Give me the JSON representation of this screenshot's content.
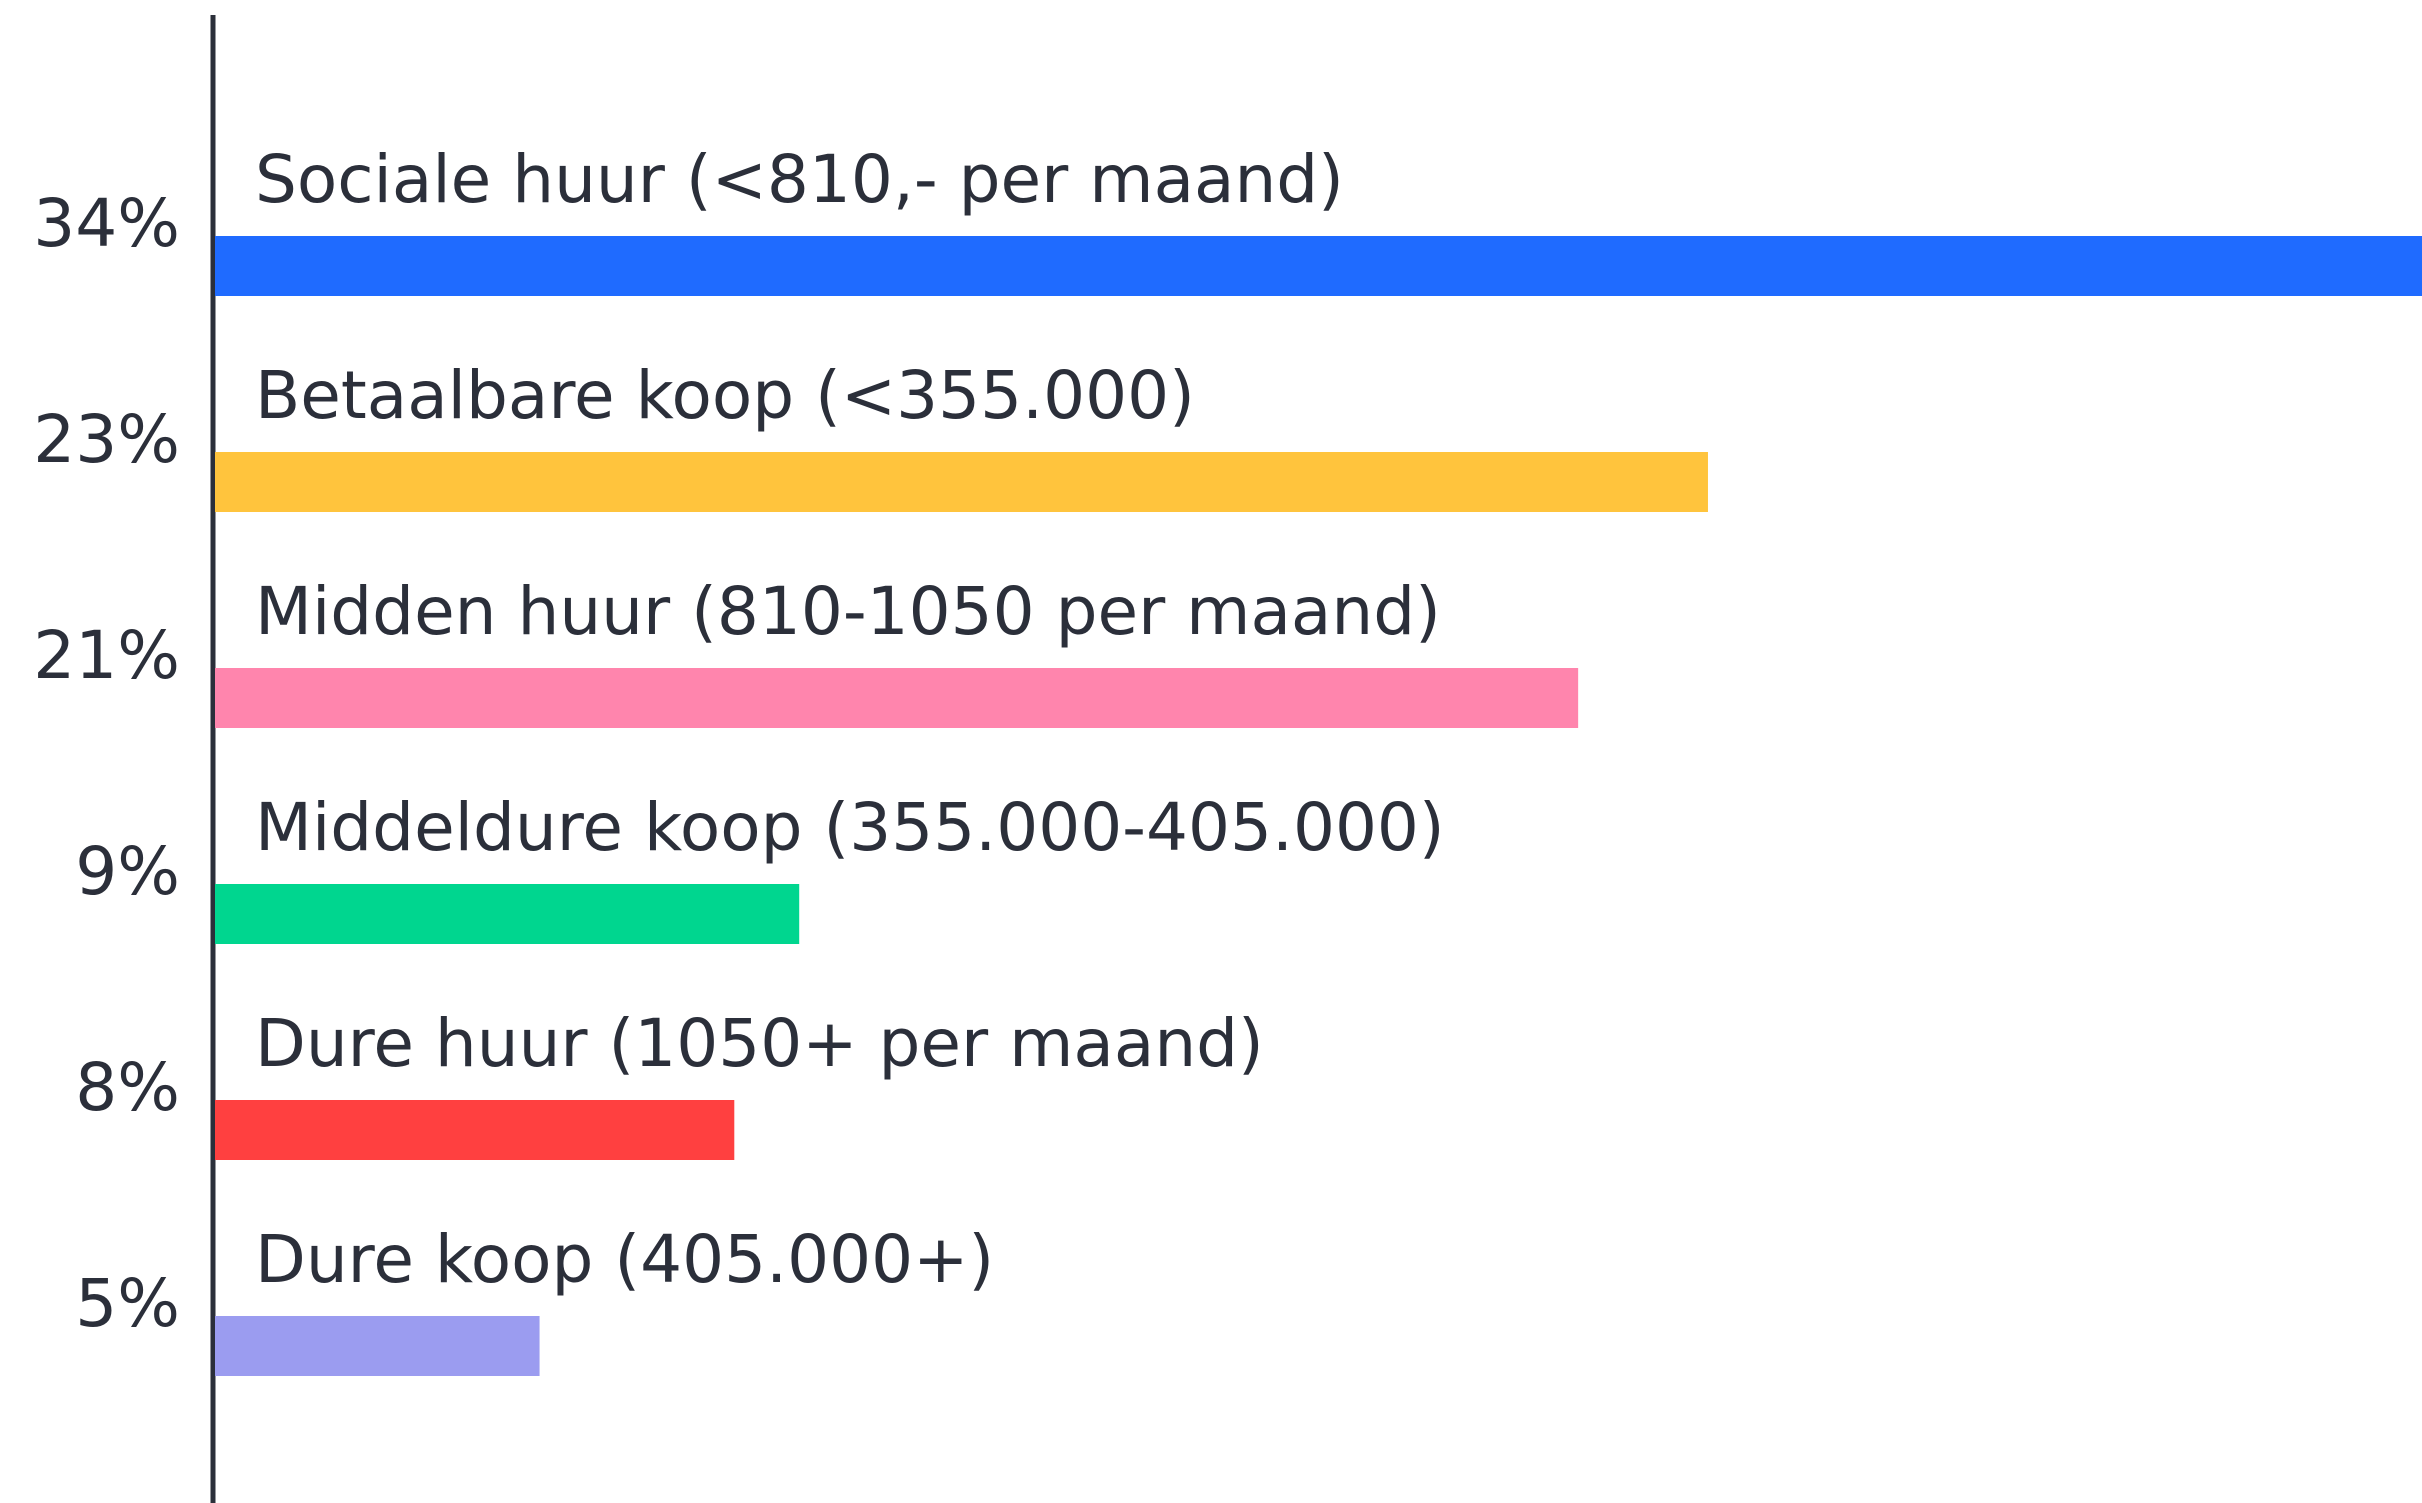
{
  "chart_data": {
    "type": "bar",
    "orientation": "horizontal",
    "categories": [
      "Sociale huur (<810,- per maand)",
      "Betaalbare koop (<355.000)",
      "Midden huur (810-1050 per maand)",
      "Middeldure koop (355.000-405.000)",
      "Dure huur (1050+ per maand)",
      "Dure koop (405.000+)"
    ],
    "values": [
      34,
      23,
      21,
      9,
      8,
      5
    ],
    "value_labels": [
      "34%",
      "23%",
      "21%",
      "9%",
      "8%",
      "5%"
    ],
    "colors": [
      "#1f6bff",
      "#ffc43d",
      "#ff85ad",
      "#00d68f",
      "#ff4040",
      "#9b9cf0"
    ]
  }
}
